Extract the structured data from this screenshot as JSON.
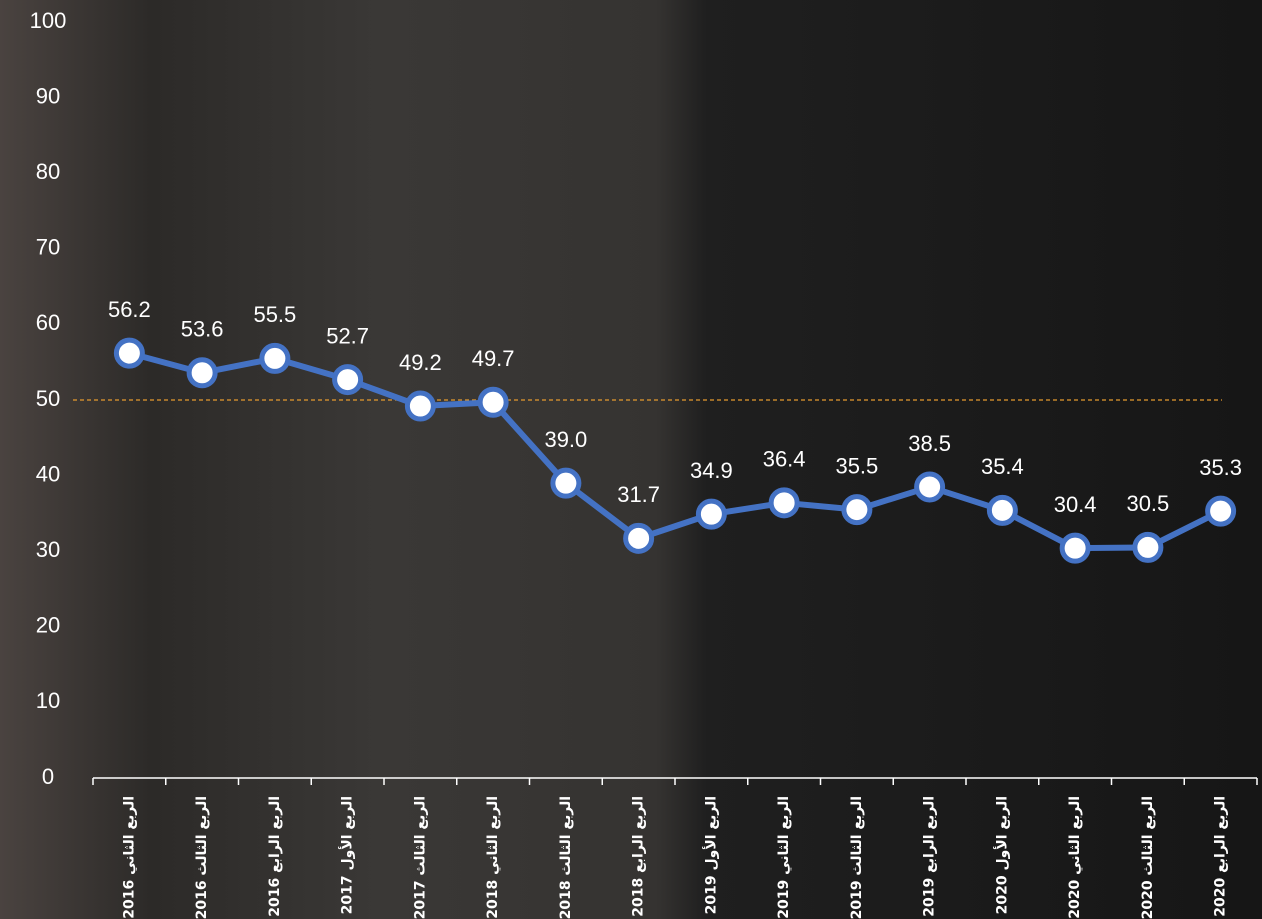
{
  "chart_data": {
    "type": "line",
    "categories": [
      "الربع الثاني 2016",
      "الربع الثالث 2016",
      "الربع الرابع 2016",
      "الربع الأول 2017",
      "الربع الثالث 2017",
      "الربع الثاني 2018",
      "الربع الثالث 2018",
      "الربع الرابع 2018",
      "الربع الأول 2019",
      "الربع الثاني 2019",
      "الربع الثالث 2019",
      "الربع الرابع 2019",
      "الربع الأول 2020",
      "الربع الثاني 2020",
      "الربع الثالث 2020",
      "الربع الرابع 2020"
    ],
    "values": [
      56.2,
      53.6,
      55.5,
      52.7,
      49.2,
      49.7,
      39.0,
      31.7,
      34.9,
      36.4,
      35.5,
      38.5,
      35.4,
      30.4,
      30.5,
      35.3
    ],
    "value_labels": [
      "56.2",
      "53.6",
      "55.5",
      "52.7",
      "49.2",
      "49.7",
      "39.0",
      "31.7",
      "34.9",
      "36.4",
      "35.5",
      "38.5",
      "35.4",
      "30.4",
      "30.5",
      "35.3"
    ],
    "color": "#4472c4",
    "ylim": [
      0,
      100
    ],
    "yticks": [
      0,
      10,
      20,
      30,
      40,
      50,
      60,
      70,
      80,
      90,
      100
    ],
    "reference_line": {
      "value": 50,
      "color": "#e59a2f"
    }
  }
}
